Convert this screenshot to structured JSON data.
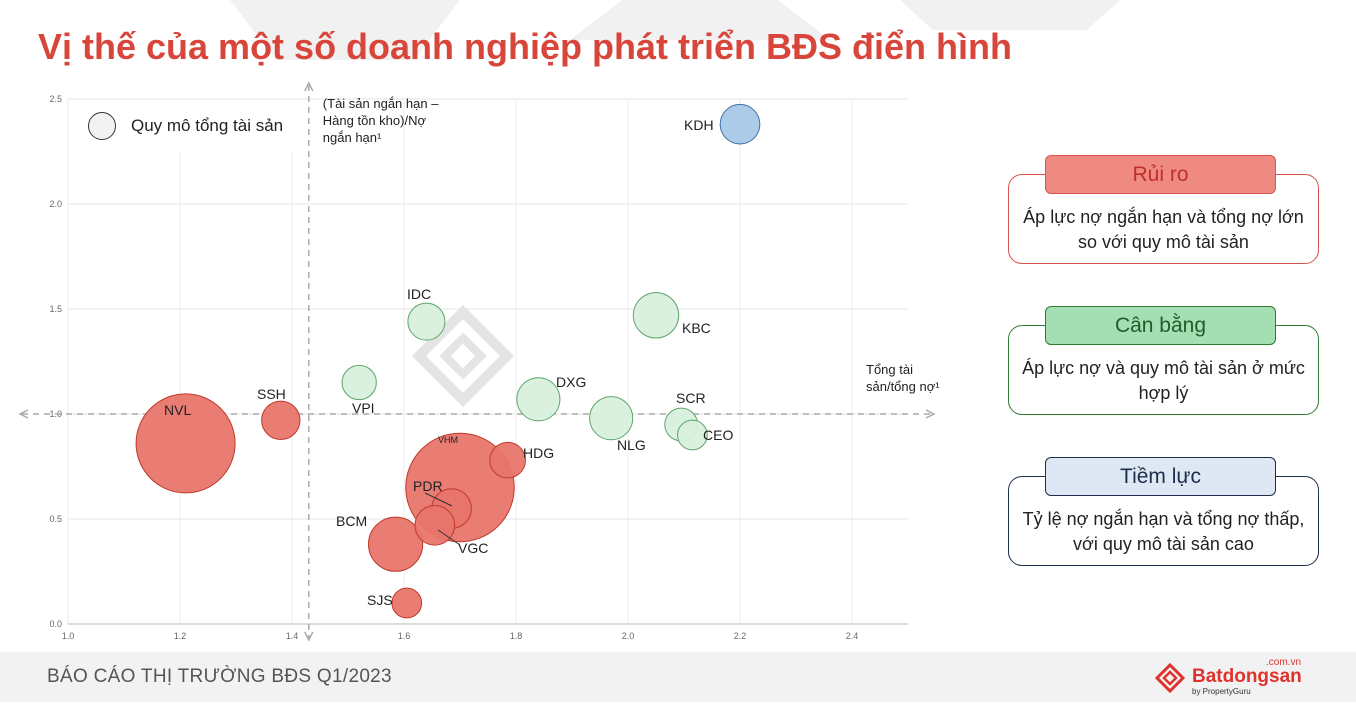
{
  "title": "Vị thế của một số doanh nghiệp phát triển BĐS điển hình",
  "legend": {
    "label": "Quy mô tổng tài sản"
  },
  "chart_data": {
    "type": "scatter",
    "subtype": "bubble",
    "xlabel": "Tổng tài sản/tổng nợ¹",
    "ylabel": "(Tài sản ngắn hạn – Hàng tồn kho)/Nợ ngắn hạn¹",
    "xlim": [
      1.0,
      2.5
    ],
    "ylim": [
      0.0,
      2.5
    ],
    "x_ticks": [
      "1.0",
      "1.2",
      "1.4",
      "1.6",
      "1.8",
      "2.0",
      "2.2",
      "2.4"
    ],
    "y_ticks": [
      "0.0",
      "0.5",
      "1.0",
      "1.5",
      "2.0",
      "2.5"
    ],
    "reference_lines": {
      "x": 1.43,
      "y": 1.0
    },
    "grid": true,
    "colors": {
      "risk": "#e8756c",
      "balanced": "#d8f0dd",
      "potential": "#a8c8e8"
    },
    "points": [
      {
        "name": "NVL",
        "x": 1.21,
        "y": 0.86,
        "size": 100,
        "group": "risk"
      },
      {
        "name": "VHM",
        "x": 1.7,
        "y": 0.65,
        "size": 120,
        "group": "risk"
      },
      {
        "name": "BCM",
        "x": 1.585,
        "y": 0.38,
        "size": 30,
        "group": "risk"
      },
      {
        "name": "PDR",
        "x": 1.685,
        "y": 0.55,
        "size": 16,
        "group": "risk"
      },
      {
        "name": "VGC",
        "x": 1.655,
        "y": 0.47,
        "size": 16,
        "group": "risk"
      },
      {
        "name": "HDG",
        "x": 1.785,
        "y": 0.78,
        "size": 13,
        "group": "risk"
      },
      {
        "name": "SSH",
        "x": 1.38,
        "y": 0.97,
        "size": 15,
        "group": "risk"
      },
      {
        "name": "SJS",
        "x": 1.605,
        "y": 0.1,
        "size": 9,
        "group": "risk"
      },
      {
        "name": "IDC",
        "x": 1.64,
        "y": 1.44,
        "size": 14,
        "group": "balanced"
      },
      {
        "name": "VPI",
        "x": 1.52,
        "y": 1.15,
        "size": 12,
        "group": "balanced"
      },
      {
        "name": "DXG",
        "x": 1.84,
        "y": 1.07,
        "size": 19,
        "group": "balanced"
      },
      {
        "name": "NLG",
        "x": 1.97,
        "y": 0.98,
        "size": 19,
        "group": "balanced"
      },
      {
        "name": "KBC",
        "x": 2.05,
        "y": 1.47,
        "size": 21,
        "group": "balanced"
      },
      {
        "name": "SCR",
        "x": 2.095,
        "y": 0.95,
        "size": 11,
        "group": "balanced"
      },
      {
        "name": "CEO",
        "x": 2.115,
        "y": 0.9,
        "size": 9,
        "group": "balanced"
      },
      {
        "name": "KDH",
        "x": 2.2,
        "y": 2.38,
        "size": 16,
        "group": "potential"
      }
    ]
  },
  "cards": [
    {
      "title": "Rủi ro",
      "body": "Áp lực nợ ngắn hạn và tổng nợ lớn so với quy mô tài sản",
      "color": "#ee8a82",
      "border": "#d9534f",
      "text_color": "#c0302a"
    },
    {
      "title": "Cân bằng",
      "body": "Áp lực nợ và quy mô tài sản ở mức hợp lý",
      "color": "#a4dfb3",
      "border": "#2e7d32",
      "text_color": "#1e5e28"
    },
    {
      "title": "Tiềm lực",
      "body": "Tỷ lệ nợ ngắn hạn và tổng nợ thấp, với quy mô tài sản cao",
      "color": "#dde8f4",
      "border": "#1c2e4a",
      "text_color": "#1c2e4a"
    }
  ],
  "footer": {
    "text": "BÁO CÁO THỊ TRƯỜNG BĐS Q1/2023"
  },
  "logo": {
    "name": "Batdongsan",
    "domain": ".com.vn",
    "by": "by PropertyGuru"
  }
}
